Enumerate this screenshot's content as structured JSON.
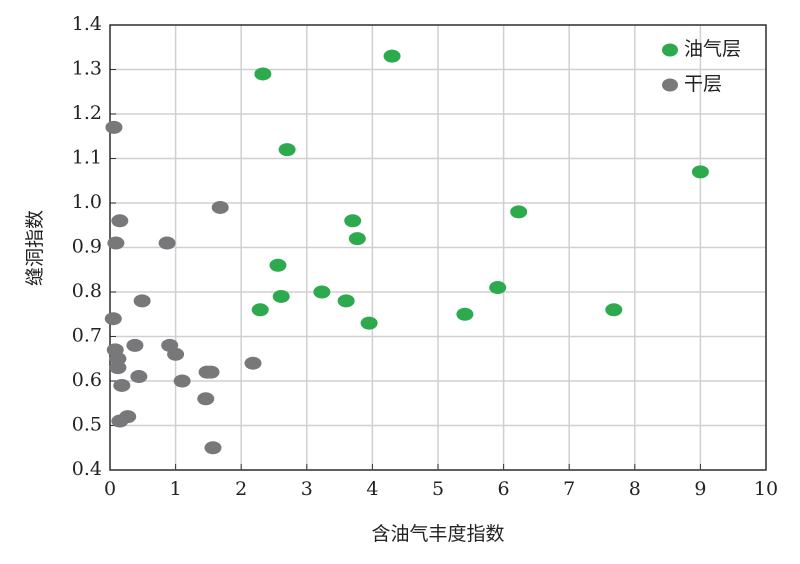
{
  "chart_data": {
    "type": "scatter",
    "xlabel": "含油气丰度指数",
    "ylabel": "缝洞指数",
    "xlim": [
      0,
      10
    ],
    "xticks": [
      0,
      1,
      2,
      3,
      4,
      5,
      6,
      7,
      8,
      9,
      10
    ],
    "ylim": [
      0.4,
      1.4
    ],
    "yticks": [
      0.4,
      0.5,
      0.6,
      0.7,
      0.8,
      0.9,
      {
        "value": 1,
        "label": "1.0"
      },
      1.1,
      1.2,
      1.3,
      1.4
    ],
    "grid": true,
    "legend": "upper right",
    "series": [
      {
        "name": "油气层",
        "color": "#2eaa4e",
        "x": [
          2.33,
          4.3,
          2.7,
          9.0,
          6.23,
          3.7,
          3.77,
          2.56,
          5.91,
          3.23,
          2.61,
          3.6,
          2.29,
          7.68,
          5.41,
          3.95
        ],
        "y": [
          1.29,
          1.33,
          1.12,
          1.07,
          0.98,
          0.96,
          0.92,
          0.86,
          0.81,
          0.8,
          0.79,
          0.78,
          0.76,
          0.76,
          0.75,
          0.73
        ]
      },
      {
        "name": "干层",
        "color": "#78787b",
        "x": [
          0.06,
          0.15,
          1.68,
          0.09,
          0.87,
          0.49,
          0.05,
          0.38,
          0.91,
          1.0,
          0.08,
          0.12,
          0.12,
          2.18,
          1.48,
          1.54,
          0.44,
          1.1,
          0.18,
          1.46,
          0.27,
          0.15,
          1.57
        ],
        "y": [
          1.17,
          0.96,
          0.99,
          0.91,
          0.91,
          0.78,
          0.74,
          0.68,
          0.68,
          0.66,
          0.67,
          0.65,
          0.63,
          0.64,
          0.62,
          0.62,
          0.61,
          0.6,
          0.59,
          0.56,
          0.52,
          0.51,
          0.45
        ]
      }
    ]
  }
}
